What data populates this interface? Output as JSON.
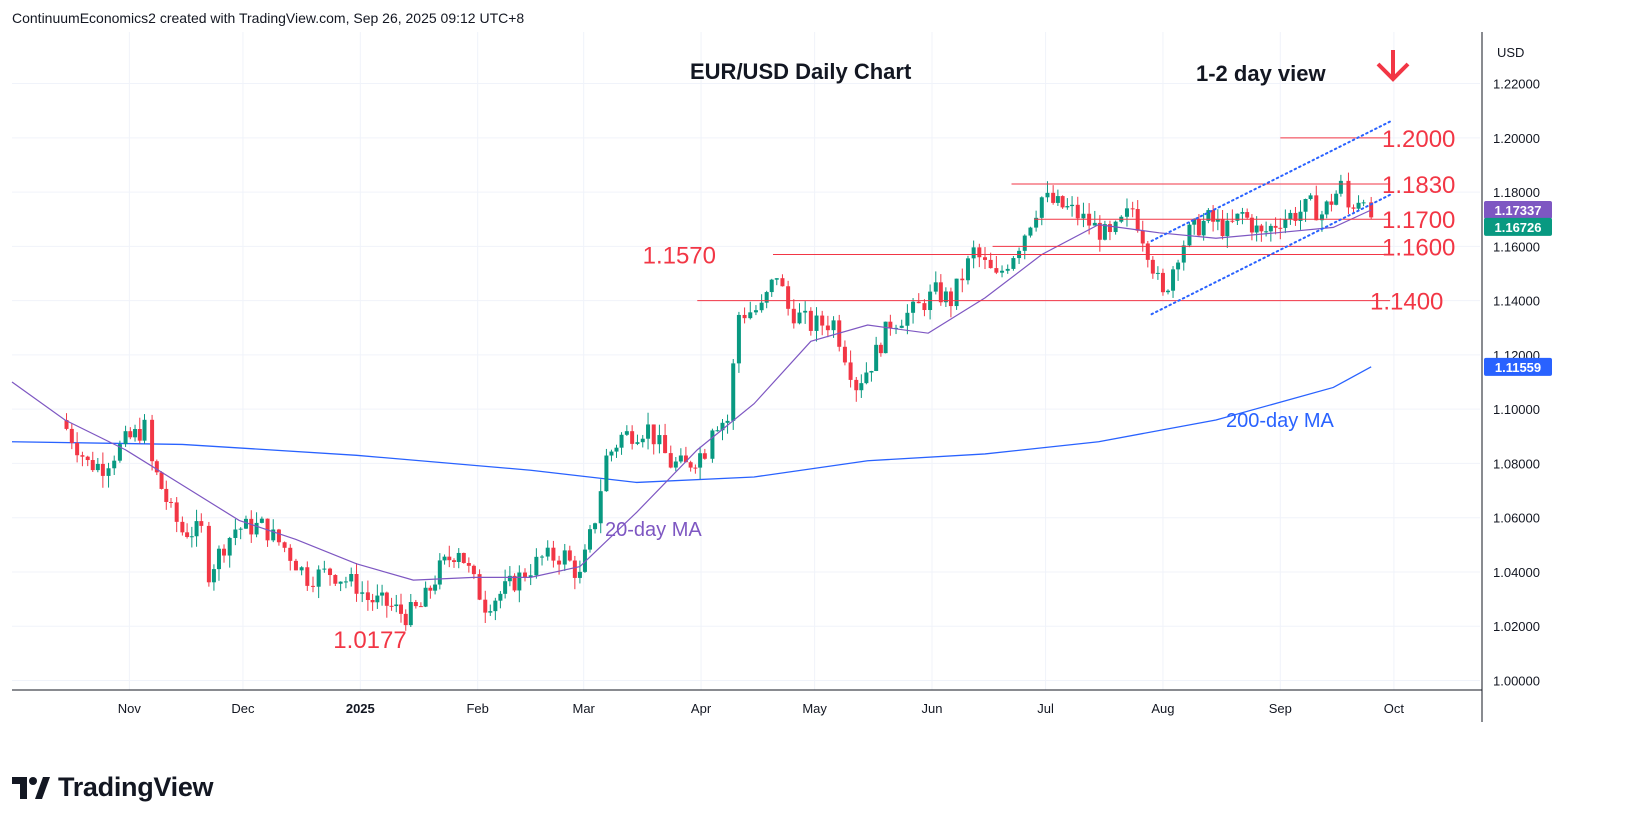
{
  "header": {
    "credit": "ContinuumEconomics2 created with TradingView.com, Sep 26, 2025 09:12 UTC+8"
  },
  "footer": {
    "brand": "TradingView"
  },
  "colors": {
    "up": "#089981",
    "down": "#f23645",
    "ma20": "#7e57c2",
    "ma200": "#2962ff",
    "level": "#f23645",
    "channel": "#2962ff",
    "grid": "#f0f3fa"
  },
  "chart_data": {
    "type": "candlestick",
    "title": "EUR/USD Daily Chart",
    "subtitle": "1-2 day view",
    "currency_label": "USD",
    "ylim": [
      0.9965,
      1.239
    ],
    "y_ticks": [
      "1.22000",
      "1.20000",
      "1.18000",
      "1.16000",
      "1.14000",
      "1.12000",
      "1.10000",
      "1.08000",
      "1.06000",
      "1.04000",
      "1.02000",
      "1.00000"
    ],
    "x_ticks": [
      "Nov",
      "Dec",
      "2025",
      "Feb",
      "Mar",
      "Apr",
      "May",
      "Jun",
      "Jul",
      "Aug",
      "Sep",
      "Oct"
    ],
    "last_price": "1.16726",
    "ma20_price": "1.17337",
    "ma200_price": "1.11559",
    "levels": [
      {
        "label": "1.2000",
        "value": 1.2
      },
      {
        "label": "1.1830",
        "value": 1.183
      },
      {
        "label": "1.1700",
        "value": 1.17
      },
      {
        "label": "1.1600",
        "value": 1.16
      },
      {
        "label": "1.1570",
        "value": 1.157
      },
      {
        "label": "1.1400",
        "value": 1.14
      }
    ],
    "annotations": [
      {
        "label": "1.0177",
        "value": 1.0177
      },
      {
        "label": "20-day MA"
      },
      {
        "label": "200-day MA"
      }
    ],
    "close_path": [
      [
        "2024-10-14",
        1.096
      ],
      [
        "2024-10-21",
        1.08
      ],
      [
        "2024-10-25",
        1.079
      ],
      [
        "2024-10-31",
        1.088
      ],
      [
        "2024-11-05",
        1.093
      ],
      [
        "2024-11-07",
        1.08
      ],
      [
        "2024-11-12",
        1.062
      ],
      [
        "2024-11-15",
        1.055
      ],
      [
        "2024-11-20",
        1.055
      ],
      [
        "2024-11-22",
        1.04
      ],
      [
        "2024-11-26",
        1.05
      ],
      [
        "2024-11-29",
        1.056
      ],
      [
        "2024-12-06",
        1.057
      ],
      [
        "2024-12-12",
        1.049
      ],
      [
        "2024-12-18",
        1.038
      ],
      [
        "2024-12-24",
        1.04
      ],
      [
        "2024-12-31",
        1.035
      ],
      [
        "2025-01-03",
        1.03
      ],
      [
        "2025-01-08",
        1.028
      ],
      [
        "2025-01-13",
        1.024
      ],
      [
        "2025-01-17",
        1.027
      ],
      [
        "2025-01-22",
        1.041
      ],
      [
        "2025-01-27",
        1.049
      ],
      [
        "2025-01-31",
        1.036
      ],
      [
        "2025-02-03",
        1.028
      ],
      [
        "2025-02-07",
        1.032
      ],
      [
        "2025-02-12",
        1.038
      ],
      [
        "2025-02-18",
        1.045
      ],
      [
        "2025-02-24",
        1.046
      ],
      [
        "2025-02-28",
        1.038
      ],
      [
        "2025-03-04",
        1.06
      ],
      [
        "2025-03-07",
        1.082
      ],
      [
        "2025-03-11",
        1.09
      ],
      [
        "2025-03-18",
        1.093
      ],
      [
        "2025-03-24",
        1.08
      ],
      [
        "2025-03-28",
        1.079
      ],
      [
        "2025-04-02",
        1.085
      ],
      [
        "2025-04-04",
        1.095
      ],
      [
        "2025-04-08",
        1.096
      ],
      [
        "2025-04-11",
        1.135
      ],
      [
        "2025-04-17",
        1.137
      ],
      [
        "2025-04-21",
        1.15
      ],
      [
        "2025-04-24",
        1.137
      ],
      [
        "2025-04-30",
        1.131
      ],
      [
        "2025-05-06",
        1.132
      ],
      [
        "2025-05-12",
        1.109
      ],
      [
        "2025-05-16",
        1.117
      ],
      [
        "2025-05-21",
        1.132
      ],
      [
        "2025-05-27",
        1.136
      ],
      [
        "2025-06-02",
        1.143
      ],
      [
        "2025-06-06",
        1.14
      ],
      [
        "2025-06-12",
        1.158
      ],
      [
        "2025-06-18",
        1.148
      ],
      [
        "2025-06-24",
        1.161
      ],
      [
        "2025-06-30",
        1.178
      ],
      [
        "2025-07-03",
        1.176
      ],
      [
        "2025-07-08",
        1.173
      ],
      [
        "2025-07-14",
        1.167
      ],
      [
        "2025-07-18",
        1.163
      ],
      [
        "2025-07-24",
        1.174
      ],
      [
        "2025-07-28",
        1.159
      ],
      [
        "2025-08-01",
        1.141
      ],
      [
        "2025-08-05",
        1.158
      ],
      [
        "2025-08-08",
        1.165
      ],
      [
        "2025-08-13",
        1.17
      ],
      [
        "2025-08-18",
        1.166
      ],
      [
        "2025-08-22",
        1.172
      ],
      [
        "2025-08-27",
        1.164
      ],
      [
        "2025-09-01",
        1.17
      ],
      [
        "2025-09-05",
        1.172
      ],
      [
        "2025-09-09",
        1.175
      ],
      [
        "2025-09-12",
        1.172
      ],
      [
        "2025-09-17",
        1.182
      ],
      [
        "2025-09-19",
        1.174
      ],
      [
        "2025-09-23",
        1.18
      ],
      [
        "2025-09-25",
        1.167
      ]
    ],
    "ma20": [
      [
        "2024-10-01",
        1.11
      ],
      [
        "2024-10-15",
        1.096
      ],
      [
        "2024-10-31",
        1.085
      ],
      [
        "2024-11-15",
        1.072
      ],
      [
        "2024-11-30",
        1.059
      ],
      [
        "2024-12-15",
        1.052
      ],
      [
        "2024-12-31",
        1.043
      ],
      [
        "2025-01-15",
        1.037
      ],
      [
        "2025-01-31",
        1.038
      ],
      [
        "2025-02-15",
        1.038
      ],
      [
        "2025-02-28",
        1.042
      ],
      [
        "2025-03-15",
        1.062
      ],
      [
        "2025-03-31",
        1.085
      ],
      [
        "2025-04-15",
        1.102
      ],
      [
        "2025-04-30",
        1.125
      ],
      [
        "2025-05-15",
        1.131
      ],
      [
        "2025-05-31",
        1.128
      ],
      [
        "2025-06-15",
        1.141
      ],
      [
        "2025-06-30",
        1.157
      ],
      [
        "2025-07-15",
        1.168
      ],
      [
        "2025-07-31",
        1.165
      ],
      [
        "2025-08-15",
        1.163
      ],
      [
        "2025-08-31",
        1.165
      ],
      [
        "2025-09-15",
        1.167
      ],
      [
        "2025-09-25",
        1.1734
      ]
    ],
    "ma200": [
      [
        "2024-10-01",
        1.088
      ],
      [
        "2024-11-15",
        1.087
      ],
      [
        "2024-12-31",
        1.083
      ],
      [
        "2025-02-15",
        1.0775
      ],
      [
        "2025-03-15",
        1.073
      ],
      [
        "2025-04-15",
        1.075
      ],
      [
        "2025-05-15",
        1.081
      ],
      [
        "2025-06-15",
        1.0835
      ],
      [
        "2025-07-15",
        1.088
      ],
      [
        "2025-08-15",
        1.096
      ],
      [
        "2025-09-15",
        1.108
      ],
      [
        "2025-09-25",
        1.1156
      ]
    ],
    "channel": [
      [
        [
          "2025-07-29",
          1.135
        ],
        [
          "2025-09-30",
          1.179
        ]
      ],
      [
        [
          "2025-07-29",
          1.162
        ],
        [
          "2025-09-30",
          1.206
        ]
      ]
    ],
    "level_lines": [
      {
        "from": "2025-09-01",
        "to": "2025-09-30",
        "value": 1.2
      },
      {
        "from": "2025-06-22",
        "to": "2025-09-30",
        "value": 1.183
      },
      {
        "from": "2025-06-28",
        "to": "2025-09-30",
        "value": 1.17
      },
      {
        "from": "2025-06-17",
        "to": "2025-09-30",
        "value": 1.16
      },
      {
        "from": "2025-04-20",
        "to": "2025-09-30",
        "value": 1.157
      },
      {
        "from": "2025-03-31",
        "to": "2025-09-30",
        "value": 1.14
      }
    ]
  }
}
